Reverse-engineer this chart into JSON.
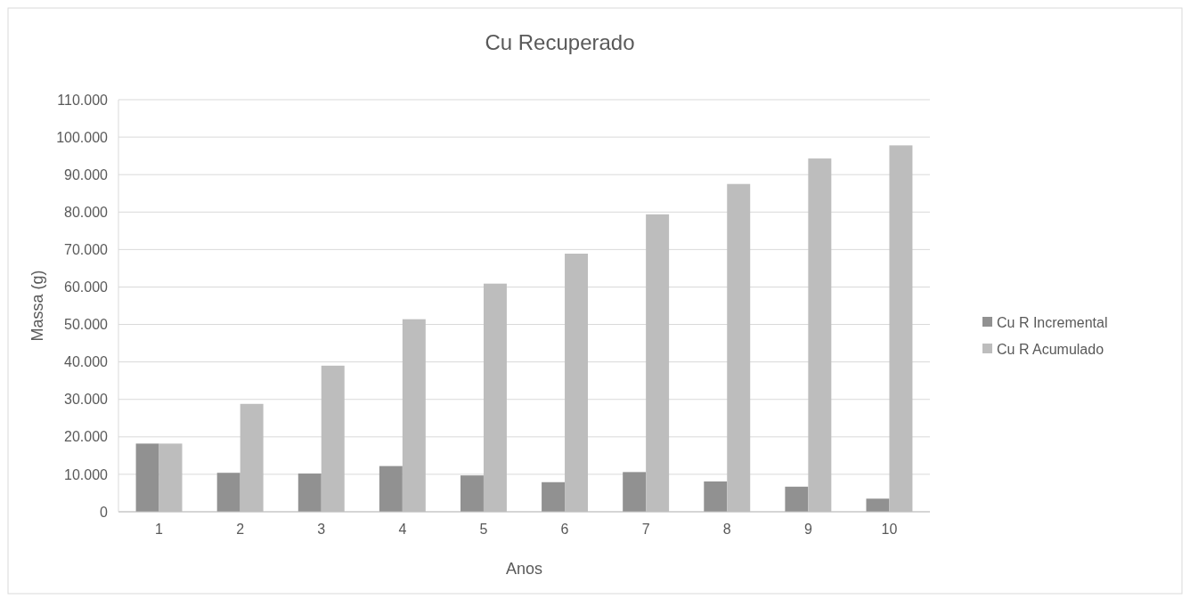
{
  "chart_data": {
    "type": "bar",
    "title": "Cu Recuperado",
    "xlabel": "Anos",
    "ylabel": "Massa (g)",
    "categories": [
      "1",
      "2",
      "3",
      "4",
      "5",
      "6",
      "7",
      "8",
      "9",
      "10"
    ],
    "series": [
      {
        "name": "Cu R Incremental",
        "color": "#919191",
        "values": [
          18200,
          10400,
          10200,
          12200,
          9700,
          7900,
          10600,
          8100,
          6700,
          3500
        ]
      },
      {
        "name": "Cu R Acumulado",
        "color": "#bdbdbd",
        "values": [
          18200,
          28800,
          39000,
          51400,
          60900,
          68900,
          79400,
          87500,
          94300,
          97800
        ]
      }
    ],
    "ylim": [
      0,
      110000
    ],
    "yticks": [
      {
        "value": 0,
        "label": "0"
      },
      {
        "value": 10000,
        "label": "10.000"
      },
      {
        "value": 20000,
        "label": "20.000"
      },
      {
        "value": 30000,
        "label": "30.000"
      },
      {
        "value": 40000,
        "label": "40.000"
      },
      {
        "value": 50000,
        "label": "50.000"
      },
      {
        "value": 60000,
        "label": "60.000"
      },
      {
        "value": 70000,
        "label": "70.000"
      },
      {
        "value": 80000,
        "label": "80.000"
      },
      {
        "value": 90000,
        "label": "90.000"
      },
      {
        "value": 100000,
        "label": "100.000"
      },
      {
        "value": 110000,
        "label": "110.000"
      }
    ],
    "grid": "y",
    "legend": "right"
  }
}
